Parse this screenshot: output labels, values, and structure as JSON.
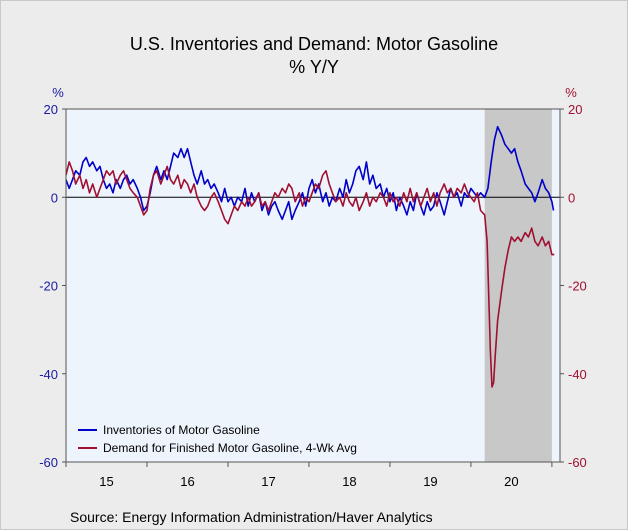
{
  "chart_data": {
    "type": "line",
    "title": "U.S. Inventories and Demand: Motor Gasoline",
    "subtitle": "% Y/Y",
    "y_left_label": "%",
    "y_right_label": "%",
    "ylim": [
      -60,
      20
    ],
    "yticks": [
      20,
      0,
      -20,
      -40,
      -60
    ],
    "x_start": 2015.0,
    "x_end": 2021.1,
    "x_tick_labels": [
      {
        "label": "15",
        "at": 2015.5
      },
      {
        "label": "16",
        "at": 2016.5
      },
      {
        "label": "17",
        "at": 2017.5
      },
      {
        "label": "18",
        "at": 2018.5
      },
      {
        "label": "19",
        "at": 2019.5
      },
      {
        "label": "20",
        "at": 2020.5
      }
    ],
    "recession_shade": [
      2020.17,
      2021.0
    ],
    "zero_line": true,
    "legend_placement": "bottom-left",
    "colors": {
      "left_axis": "#1a1aa6",
      "right_axis": "#a01030",
      "plot_bg": "#eef4fc",
      "shade": "#c8c8c8"
    },
    "series": [
      {
        "name": "Inventories of Motor Gasoline",
        "color": "#0000c8",
        "points": [
          [
            2015.0,
            4
          ],
          [
            2015.04,
            2
          ],
          [
            2015.08,
            4
          ],
          [
            2015.12,
            6
          ],
          [
            2015.17,
            5
          ],
          [
            2015.21,
            8
          ],
          [
            2015.25,
            9
          ],
          [
            2015.29,
            7
          ],
          [
            2015.33,
            8
          ],
          [
            2015.38,
            6
          ],
          [
            2015.42,
            7
          ],
          [
            2015.46,
            4
          ],
          [
            2015.5,
            2
          ],
          [
            2015.54,
            3
          ],
          [
            2015.58,
            1
          ],
          [
            2015.62,
            4
          ],
          [
            2015.67,
            2
          ],
          [
            2015.71,
            4
          ],
          [
            2015.75,
            5
          ],
          [
            2015.79,
            3
          ],
          [
            2015.83,
            4
          ],
          [
            2015.88,
            2
          ],
          [
            2015.92,
            0
          ],
          [
            2015.96,
            -3
          ],
          [
            2016.0,
            -2
          ],
          [
            2016.04,
            1
          ],
          [
            2016.08,
            5
          ],
          [
            2016.12,
            7
          ],
          [
            2016.17,
            4
          ],
          [
            2016.21,
            6
          ],
          [
            2016.25,
            4
          ],
          [
            2016.29,
            7
          ],
          [
            2016.33,
            10
          ],
          [
            2016.38,
            9
          ],
          [
            2016.42,
            11
          ],
          [
            2016.46,
            9
          ],
          [
            2016.5,
            11
          ],
          [
            2016.54,
            8
          ],
          [
            2016.58,
            5
          ],
          [
            2016.62,
            3
          ],
          [
            2016.67,
            6
          ],
          [
            2016.71,
            3
          ],
          [
            2016.75,
            4
          ],
          [
            2016.79,
            2
          ],
          [
            2016.83,
            3
          ],
          [
            2016.88,
            1
          ],
          [
            2016.92,
            -1
          ],
          [
            2016.96,
            2
          ],
          [
            2017.0,
            -1
          ],
          [
            2017.04,
            0
          ],
          [
            2017.08,
            -2
          ],
          [
            2017.12,
            0
          ],
          [
            2017.17,
            -1
          ],
          [
            2017.21,
            2
          ],
          [
            2017.25,
            -2
          ],
          [
            2017.29,
            1
          ],
          [
            2017.33,
            -1
          ],
          [
            2017.38,
            1
          ],
          [
            2017.42,
            -3
          ],
          [
            2017.46,
            -1
          ],
          [
            2017.5,
            -4
          ],
          [
            2017.54,
            -2
          ],
          [
            2017.58,
            -1
          ],
          [
            2017.62,
            -3
          ],
          [
            2017.67,
            -5
          ],
          [
            2017.71,
            -3
          ],
          [
            2017.75,
            -1
          ],
          [
            2017.79,
            -5
          ],
          [
            2017.83,
            -3
          ],
          [
            2017.88,
            -1
          ],
          [
            2017.92,
            1
          ],
          [
            2017.96,
            -2
          ],
          [
            2018.0,
            2
          ],
          [
            2018.04,
            4
          ],
          [
            2018.08,
            1
          ],
          [
            2018.12,
            3
          ],
          [
            2018.17,
            -1
          ],
          [
            2018.21,
            1
          ],
          [
            2018.25,
            -2
          ],
          [
            2018.29,
            0
          ],
          [
            2018.33,
            -1
          ],
          [
            2018.38,
            2
          ],
          [
            2018.42,
            0
          ],
          [
            2018.46,
            4
          ],
          [
            2018.5,
            1
          ],
          [
            2018.54,
            3
          ],
          [
            2018.58,
            6
          ],
          [
            2018.62,
            7
          ],
          [
            2018.67,
            4
          ],
          [
            2018.71,
            8
          ],
          [
            2018.75,
            3
          ],
          [
            2018.79,
            5
          ],
          [
            2018.83,
            2
          ],
          [
            2018.88,
            3
          ],
          [
            2018.92,
            0
          ],
          [
            2018.96,
            2
          ],
          [
            2019.0,
            -1
          ],
          [
            2019.04,
            1
          ],
          [
            2019.08,
            -3
          ],
          [
            2019.12,
            0
          ],
          [
            2019.17,
            -2
          ],
          [
            2019.21,
            -4
          ],
          [
            2019.25,
            -1
          ],
          [
            2019.29,
            -3
          ],
          [
            2019.33,
            1
          ],
          [
            2019.38,
            -2
          ],
          [
            2019.42,
            -4
          ],
          [
            2019.46,
            -1
          ],
          [
            2019.5,
            -3
          ],
          [
            2019.54,
            -2
          ],
          [
            2019.58,
            1
          ],
          [
            2019.62,
            -1
          ],
          [
            2019.67,
            -4
          ],
          [
            2019.71,
            -1
          ],
          [
            2019.75,
            2
          ],
          [
            2019.79,
            0
          ],
          [
            2019.83,
            1
          ],
          [
            2019.88,
            -2
          ],
          [
            2019.92,
            1
          ],
          [
            2019.96,
            0
          ],
          [
            2020.0,
            2
          ],
          [
            2020.04,
            1
          ],
          [
            2020.08,
            0
          ],
          [
            2020.12,
            1
          ],
          [
            2020.17,
            0
          ],
          [
            2020.21,
            2
          ],
          [
            2020.25,
            8
          ],
          [
            2020.29,
            13
          ],
          [
            2020.33,
            16
          ],
          [
            2020.38,
            14
          ],
          [
            2020.42,
            12
          ],
          [
            2020.46,
            11
          ],
          [
            2020.5,
            10
          ],
          [
            2020.54,
            11
          ],
          [
            2020.58,
            8
          ],
          [
            2020.62,
            6
          ],
          [
            2020.67,
            3
          ],
          [
            2020.71,
            2
          ],
          [
            2020.75,
            1
          ],
          [
            2020.79,
            -1
          ],
          [
            2020.83,
            1
          ],
          [
            2020.88,
            4
          ],
          [
            2020.92,
            2
          ],
          [
            2020.96,
            1
          ],
          [
            2021.0,
            -1
          ],
          [
            2021.02,
            -3
          ]
        ]
      },
      {
        "name": "Demand for Finished Motor Gasoline, 4-Wk Avg",
        "color": "#a01030",
        "points": [
          [
            2015.0,
            5
          ],
          [
            2015.04,
            8
          ],
          [
            2015.08,
            6
          ],
          [
            2015.12,
            3
          ],
          [
            2015.17,
            5
          ],
          [
            2015.21,
            2
          ],
          [
            2015.25,
            4
          ],
          [
            2015.29,
            1
          ],
          [
            2015.33,
            3
          ],
          [
            2015.38,
            0
          ],
          [
            2015.42,
            2
          ],
          [
            2015.46,
            4
          ],
          [
            2015.5,
            6
          ],
          [
            2015.54,
            5
          ],
          [
            2015.58,
            6
          ],
          [
            2015.62,
            3
          ],
          [
            2015.67,
            5
          ],
          [
            2015.71,
            6
          ],
          [
            2015.75,
            4
          ],
          [
            2015.79,
            2
          ],
          [
            2015.83,
            1
          ],
          [
            2015.88,
            0
          ],
          [
            2015.92,
            -2
          ],
          [
            2015.96,
            -4
          ],
          [
            2016.0,
            -3
          ],
          [
            2016.04,
            2
          ],
          [
            2016.08,
            5
          ],
          [
            2016.12,
            6
          ],
          [
            2016.17,
            3
          ],
          [
            2016.21,
            5
          ],
          [
            2016.25,
            7
          ],
          [
            2016.29,
            4
          ],
          [
            2016.33,
            3
          ],
          [
            2016.38,
            5
          ],
          [
            2016.42,
            2
          ],
          [
            2016.46,
            4
          ],
          [
            2016.5,
            3
          ],
          [
            2016.54,
            1
          ],
          [
            2016.58,
            3
          ],
          [
            2016.62,
            0
          ],
          [
            2016.67,
            -2
          ],
          [
            2016.71,
            -3
          ],
          [
            2016.75,
            -2
          ],
          [
            2016.79,
            0
          ],
          [
            2016.83,
            1
          ],
          [
            2016.88,
            -1
          ],
          [
            2016.92,
            -3
          ],
          [
            2016.96,
            -5
          ],
          [
            2017.0,
            -6
          ],
          [
            2017.04,
            -4
          ],
          [
            2017.08,
            -2
          ],
          [
            2017.12,
            -3
          ],
          [
            2017.17,
            -1
          ],
          [
            2017.21,
            -2
          ],
          [
            2017.25,
            0
          ],
          [
            2017.29,
            -2
          ],
          [
            2017.33,
            -1
          ],
          [
            2017.38,
            1
          ],
          [
            2017.42,
            -2
          ],
          [
            2017.46,
            -1
          ],
          [
            2017.5,
            -3
          ],
          [
            2017.54,
            -1
          ],
          [
            2017.58,
            1
          ],
          [
            2017.62,
            0
          ],
          [
            2017.67,
            2
          ],
          [
            2017.71,
            1
          ],
          [
            2017.75,
            3
          ],
          [
            2017.79,
            2
          ],
          [
            2017.83,
            -1
          ],
          [
            2017.88,
            1
          ],
          [
            2017.92,
            -2
          ],
          [
            2017.96,
            0
          ],
          [
            2018.0,
            -1
          ],
          [
            2018.04,
            1
          ],
          [
            2018.08,
            3
          ],
          [
            2018.12,
            2
          ],
          [
            2018.17,
            5
          ],
          [
            2018.21,
            6
          ],
          [
            2018.25,
            3
          ],
          [
            2018.29,
            1
          ],
          [
            2018.33,
            -1
          ],
          [
            2018.38,
            0
          ],
          [
            2018.42,
            -2
          ],
          [
            2018.46,
            1
          ],
          [
            2018.5,
            -1
          ],
          [
            2018.54,
            -2
          ],
          [
            2018.58,
            0
          ],
          [
            2018.62,
            -3
          ],
          [
            2018.67,
            -1
          ],
          [
            2018.71,
            1
          ],
          [
            2018.75,
            -2
          ],
          [
            2018.79,
            0
          ],
          [
            2018.83,
            -1
          ],
          [
            2018.88,
            1
          ],
          [
            2018.92,
            0
          ],
          [
            2018.96,
            -2
          ],
          [
            2019.0,
            1
          ],
          [
            2019.04,
            -1
          ],
          [
            2019.08,
            0
          ],
          [
            2019.12,
            -2
          ],
          [
            2019.17,
            1
          ],
          [
            2019.21,
            -1
          ],
          [
            2019.25,
            2
          ],
          [
            2019.29,
            -1
          ],
          [
            2019.33,
            1
          ],
          [
            2019.38,
            -2
          ],
          [
            2019.42,
            0
          ],
          [
            2019.46,
            2
          ],
          [
            2019.5,
            -1
          ],
          [
            2019.54,
            1
          ],
          [
            2019.58,
            -2
          ],
          [
            2019.62,
            1
          ],
          [
            2019.67,
            3
          ],
          [
            2019.71,
            1
          ],
          [
            2019.75,
            2
          ],
          [
            2019.79,
            0
          ],
          [
            2019.83,
            2
          ],
          [
            2019.88,
            1
          ],
          [
            2019.92,
            3
          ],
          [
            2019.96,
            1
          ],
          [
            2020.0,
            0
          ],
          [
            2020.04,
            -1
          ],
          [
            2020.08,
            1
          ],
          [
            2020.12,
            -3
          ],
          [
            2020.17,
            -4
          ],
          [
            2020.2,
            -10
          ],
          [
            2020.22,
            -22
          ],
          [
            2020.24,
            -35
          ],
          [
            2020.26,
            -43
          ],
          [
            2020.28,
            -42
          ],
          [
            2020.3,
            -36
          ],
          [
            2020.33,
            -28
          ],
          [
            2020.38,
            -21
          ],
          [
            2020.42,
            -16
          ],
          [
            2020.46,
            -12
          ],
          [
            2020.5,
            -9
          ],
          [
            2020.54,
            -10
          ],
          [
            2020.58,
            -9
          ],
          [
            2020.62,
            -10
          ],
          [
            2020.67,
            -8
          ],
          [
            2020.71,
            -9
          ],
          [
            2020.75,
            -7
          ],
          [
            2020.79,
            -10
          ],
          [
            2020.83,
            -11
          ],
          [
            2020.88,
            -9
          ],
          [
            2020.92,
            -11
          ],
          [
            2020.96,
            -10
          ],
          [
            2021.0,
            -13
          ],
          [
            2021.03,
            -13
          ]
        ]
      }
    ]
  },
  "source_text": "Source:  Energy Information Administration/Haver Analytics"
}
